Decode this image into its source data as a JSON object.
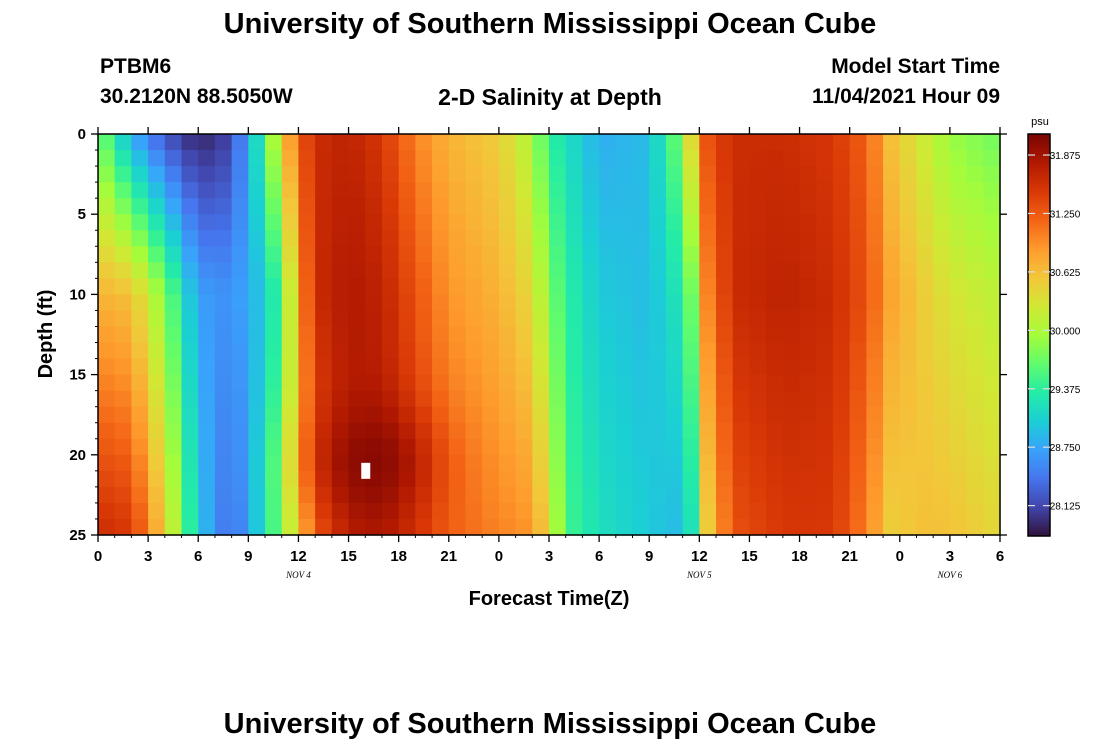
{
  "header": {
    "title": "University of Southern Mississippi Ocean Cube",
    "station": "PTBM6",
    "coords": "30.2120N  88.5050W",
    "plot_title": "2-D Salinity at Depth",
    "model_start_label": "Model Start Time",
    "model_start_value": "11/04/2021 Hour 09"
  },
  "footer": {
    "title": "University of Southern Mississippi Ocean Cube"
  },
  "colors": {
    "colormap": [
      "#30123b",
      "#4145ab",
      "#4675ed",
      "#39a2fc",
      "#1bcfd4",
      "#24eca6",
      "#61fc6c",
      "#a4fc3b",
      "#d1e834",
      "#f3c63a",
      "#fe9b2d",
      "#f36315",
      "#d93806",
      "#b11901",
      "#7a0402"
    ]
  },
  "chart_data": {
    "type": "heatmap",
    "title": "2-D Salinity at Depth",
    "xlabel": "Forecast Time(Z)",
    "ylabel": "Depth (ft)",
    "x_range_hours": [
      0,
      54
    ],
    "y_range_ft": [
      0,
      25
    ],
    "x_tick_labels": [
      "0",
      "3",
      "6",
      "9",
      "12",
      "15",
      "18",
      "21",
      "0",
      "3",
      "6",
      "9",
      "12",
      "15",
      "18",
      "21",
      "0",
      "3",
      "6"
    ],
    "y_tick_labels": [
      "0",
      "5",
      "10",
      "15",
      "20",
      "25"
    ],
    "date_labels": [
      {
        "text": "NOV 4",
        "hour": 12
      },
      {
        "text": "NOV 5",
        "hour": 36
      },
      {
        "text": "NOV 6",
        "hour": 51
      }
    ],
    "colorbar": {
      "unit": "psu",
      "min": 27.8,
      "max": 32.1,
      "tick_labels": [
        "28.125",
        "28.750",
        "29.375",
        "30.000",
        "30.625",
        "31.250",
        "31.875"
      ],
      "tick_values": [
        28.125,
        28.75,
        29.375,
        30.0,
        30.625,
        31.25,
        31.875
      ]
    },
    "profiles": [
      {
        "hour": 0,
        "surface": 29.8,
        "depth10": 30.7,
        "bottom": 31.6
      },
      {
        "hour": 2,
        "surface": 28.8,
        "depth10": 30.6,
        "bottom": 31.5
      },
      {
        "hour": 4,
        "surface": 28.2,
        "depth10": 29.8,
        "bottom": 30.5
      },
      {
        "hour": 6,
        "surface": 27.9,
        "depth10": 28.7,
        "bottom": 29.0
      },
      {
        "hour": 8,
        "surface": 28.1,
        "depth10": 28.6,
        "bottom": 28.3
      },
      {
        "hour": 10,
        "surface": 29.5,
        "depth10": 29.0,
        "bottom": 29.2
      },
      {
        "hour": 11,
        "surface": 30.5,
        "depth10": 29.6,
        "bottom": 29.8
      },
      {
        "hour": 12,
        "surface": 31.2,
        "depth10": 30.8,
        "bottom": 30.5
      },
      {
        "hour": 13,
        "surface": 31.6,
        "depth10": 31.6,
        "bottom": 31.2
      },
      {
        "hour": 15,
        "surface": 31.7,
        "depth10": 31.8,
        "bottom": 31.7
      },
      {
        "hour": 17,
        "surface": 31.5,
        "depth10": 31.7,
        "bottom": 31.8
      },
      {
        "hour": 19,
        "surface": 31.0,
        "depth10": 31.3,
        "bottom": 31.5
      },
      {
        "hour": 21,
        "surface": 30.7,
        "depth10": 30.9,
        "bottom": 31.2
      },
      {
        "hour": 24,
        "surface": 30.5,
        "depth10": 30.7,
        "bottom": 31.0
      },
      {
        "hour": 26,
        "surface": 30.0,
        "depth10": 30.4,
        "bottom": 30.9
      },
      {
        "hour": 27,
        "surface": 29.4,
        "depth10": 29.8,
        "bottom": 30.4
      },
      {
        "hour": 28,
        "surface": 29.2,
        "depth10": 29.4,
        "bottom": 29.5
      },
      {
        "hour": 30,
        "surface": 28.8,
        "depth10": 29.0,
        "bottom": 29.2
      },
      {
        "hour": 33,
        "surface": 28.9,
        "depth10": 28.9,
        "bottom": 29.0
      },
      {
        "hour": 34.5,
        "surface": 29.6,
        "depth10": 29.2,
        "bottom": 28.9
      },
      {
        "hour": 35.5,
        "surface": 30.4,
        "depth10": 29.7,
        "bottom": 29.2
      },
      {
        "hour": 36.5,
        "surface": 31.3,
        "depth10": 31.0,
        "bottom": 30.5
      },
      {
        "hour": 38,
        "surface": 31.6,
        "depth10": 31.6,
        "bottom": 31.3
      },
      {
        "hour": 41,
        "surface": 31.6,
        "depth10": 31.7,
        "bottom": 31.5
      },
      {
        "hour": 44,
        "surface": 31.5,
        "depth10": 31.6,
        "bottom": 31.5
      },
      {
        "hour": 46,
        "surface": 31.2,
        "depth10": 31.3,
        "bottom": 31.0
      },
      {
        "hour": 47.5,
        "surface": 30.6,
        "depth10": 30.8,
        "bottom": 30.5
      },
      {
        "hour": 49.5,
        "surface": 30.2,
        "depth10": 30.5,
        "bottom": 30.6
      },
      {
        "hour": 51,
        "surface": 29.9,
        "depth10": 30.3,
        "bottom": 30.6
      },
      {
        "hour": 54,
        "surface": 29.7,
        "depth10": 30.1,
        "bottom": 30.4
      }
    ],
    "hotspot": {
      "hour": 16.5,
      "depth_ft": 20.5,
      "value": 32.1
    },
    "missing_cell": {
      "hour": 16,
      "depth_ft": 21
    }
  }
}
